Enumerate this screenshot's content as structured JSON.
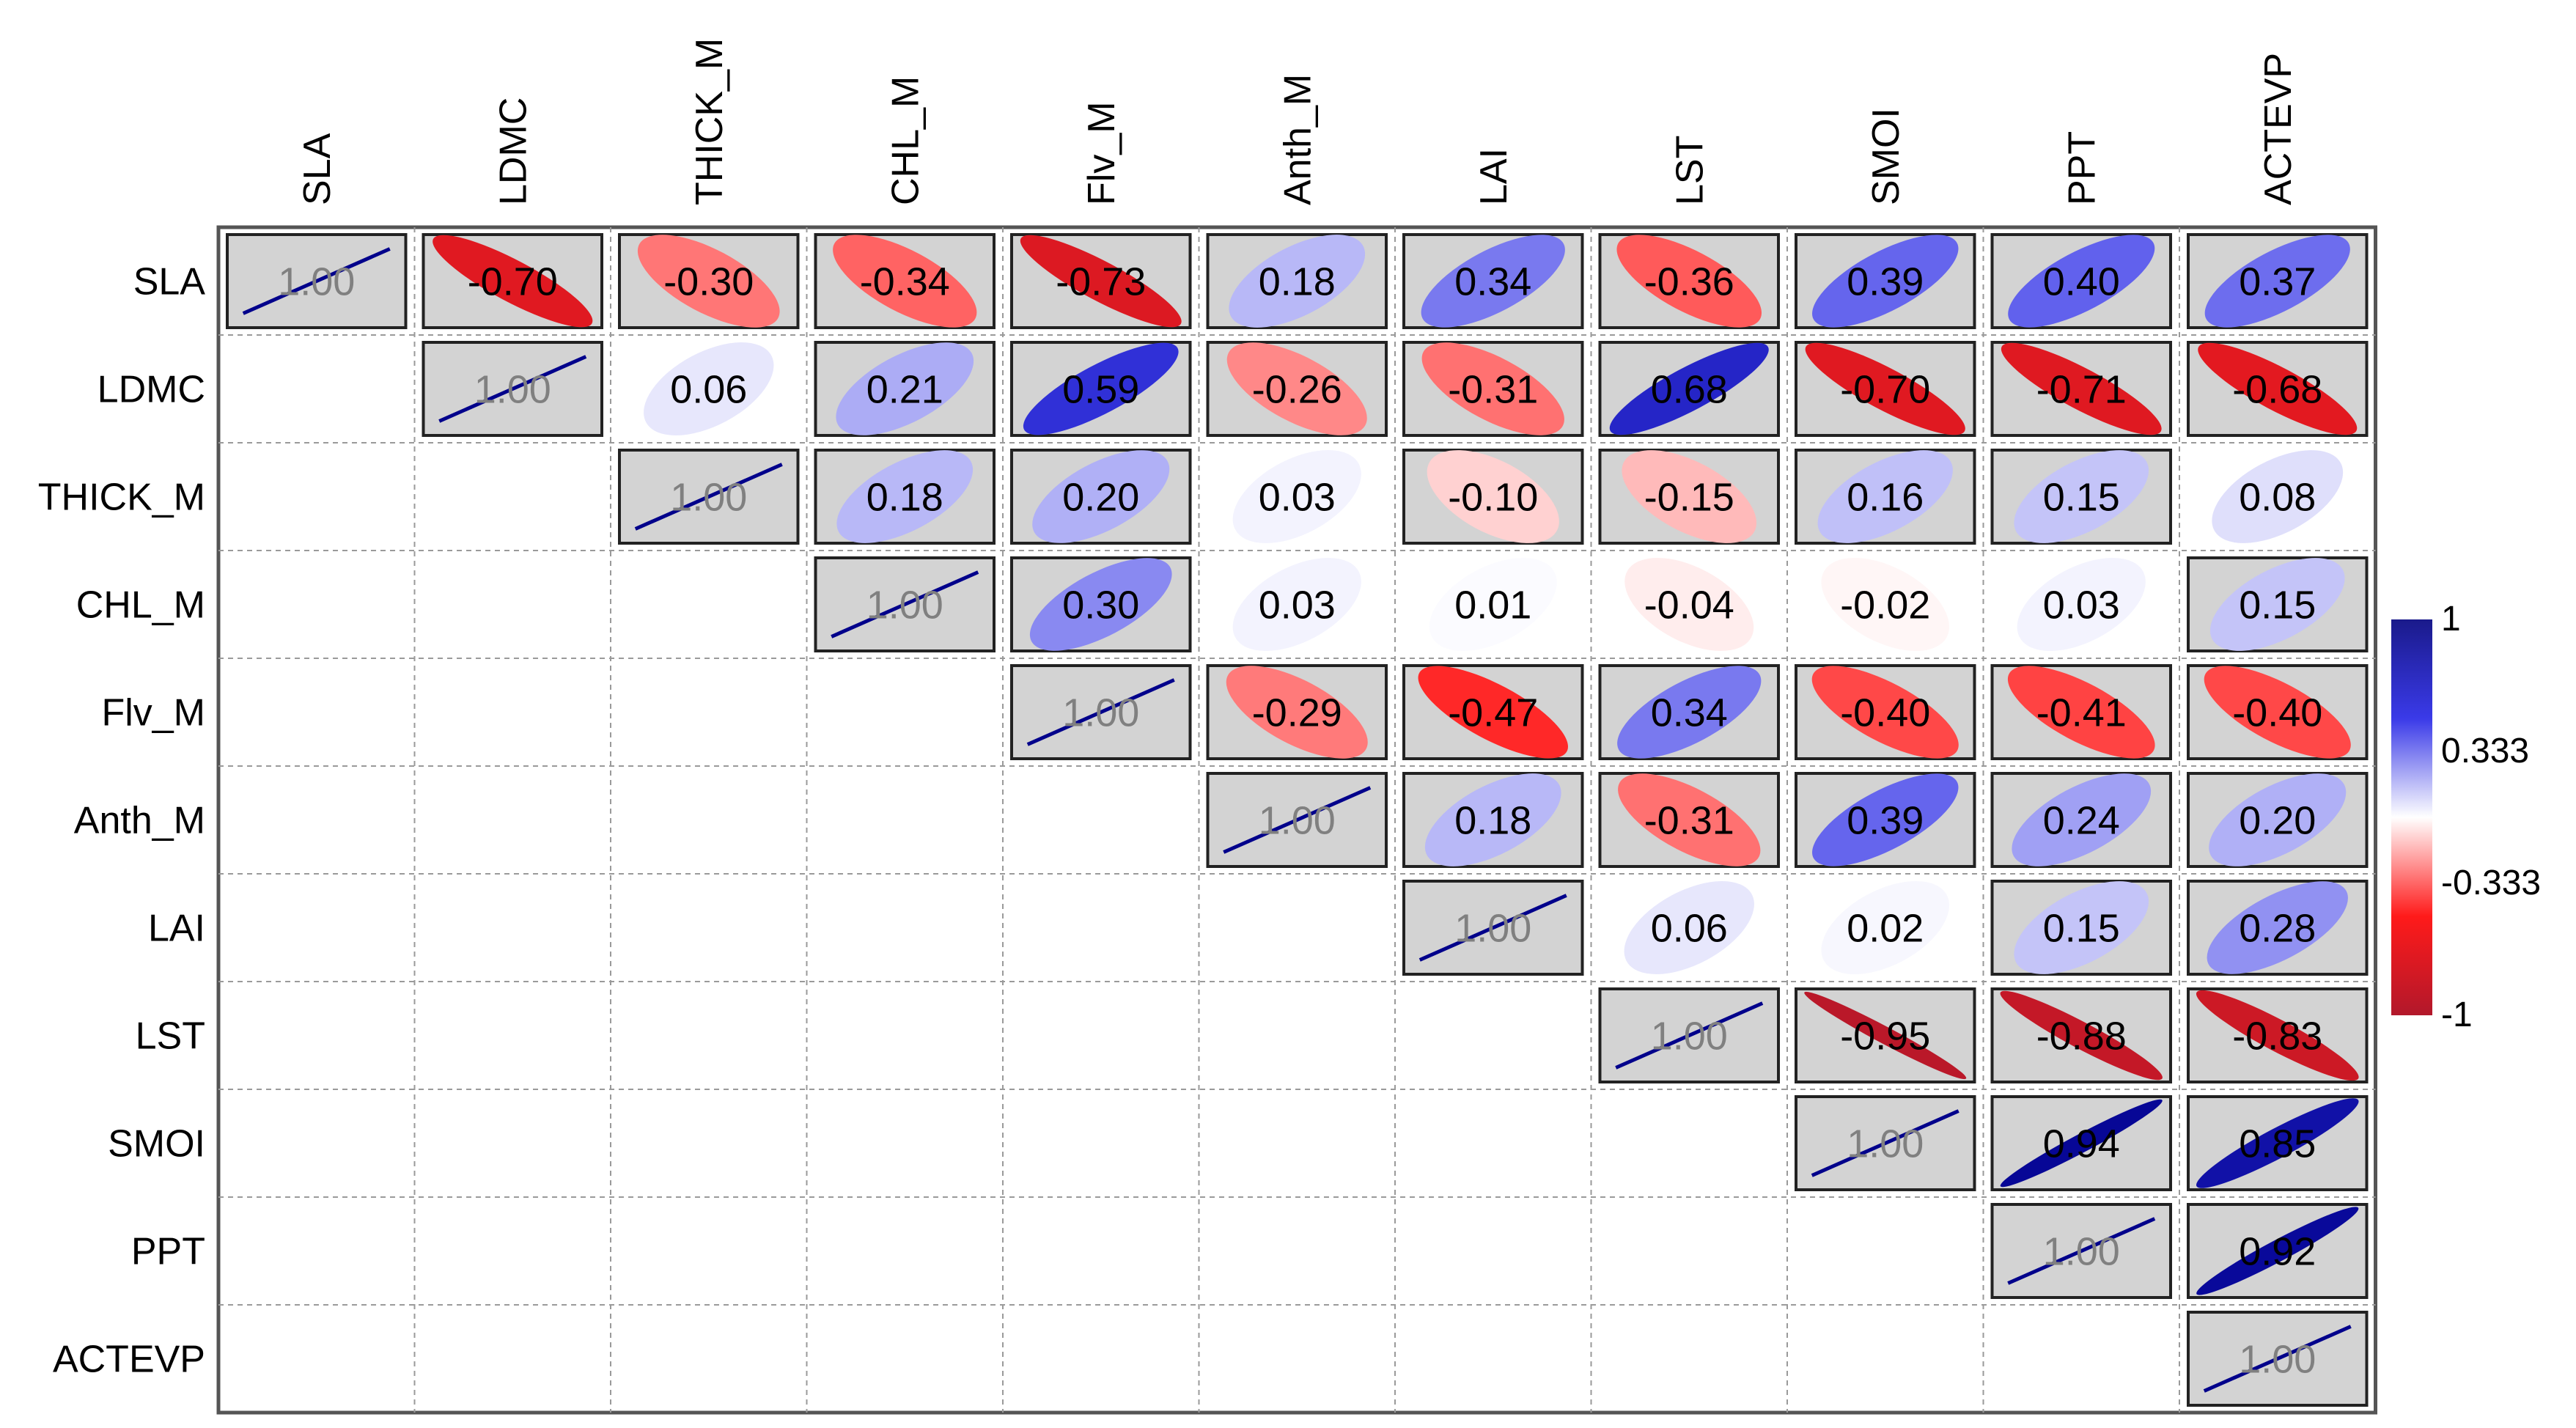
{
  "chart_data": {
    "type": "heatmap",
    "subtype": "correlation-matrix-upper-ellipse",
    "title": "",
    "variables": [
      "SLA",
      "LDMC",
      "THICK_M",
      "CHL_M",
      "Flv_M",
      "Anth_M",
      "LAI",
      "LST",
      "SMOI",
      "PPT",
      "ACTEVP"
    ],
    "matrix": [
      [
        1.0,
        -0.7,
        -0.3,
        -0.34,
        -0.73,
        0.18,
        0.34,
        -0.36,
        0.39,
        0.4,
        0.37
      ],
      [
        null,
        1.0,
        0.06,
        0.21,
        0.59,
        -0.26,
        -0.31,
        0.68,
        -0.7,
        -0.71,
        -0.68
      ],
      [
        null,
        null,
        1.0,
        0.18,
        0.2,
        0.03,
        -0.1,
        -0.15,
        0.16,
        0.15,
        0.08
      ],
      [
        null,
        null,
        null,
        1.0,
        0.3,
        0.03,
        0.01,
        -0.04,
        -0.02,
        0.03,
        0.15
      ],
      [
        null,
        null,
        null,
        null,
        1.0,
        -0.29,
        -0.47,
        0.34,
        -0.4,
        -0.41,
        -0.4
      ],
      [
        null,
        null,
        null,
        null,
        null,
        1.0,
        0.18,
        -0.31,
        0.39,
        0.24,
        0.2
      ],
      [
        null,
        null,
        null,
        null,
        null,
        null,
        1.0,
        0.06,
        0.02,
        0.15,
        0.28
      ],
      [
        null,
        null,
        null,
        null,
        null,
        null,
        null,
        1.0,
        -0.95,
        -0.88,
        -0.83
      ],
      [
        null,
        null,
        null,
        null,
        null,
        null,
        null,
        null,
        1.0,
        0.94,
        0.85
      ],
      [
        null,
        null,
        null,
        null,
        null,
        null,
        null,
        null,
        null,
        1.0,
        0.92
      ],
      [
        null,
        null,
        null,
        null,
        null,
        null,
        null,
        null,
        null,
        null,
        1.0
      ]
    ],
    "boxed_cells": [
      [
        0,
        0
      ],
      [
        0,
        1
      ],
      [
        0,
        2
      ],
      [
        0,
        3
      ],
      [
        0,
        4
      ],
      [
        0,
        5
      ],
      [
        0,
        6
      ],
      [
        0,
        7
      ],
      [
        0,
        8
      ],
      [
        0,
        9
      ],
      [
        0,
        10
      ],
      [
        1,
        1
      ],
      [
        1,
        3
      ],
      [
        1,
        4
      ],
      [
        1,
        5
      ],
      [
        1,
        6
      ],
      [
        1,
        7
      ],
      [
        1,
        8
      ],
      [
        1,
        9
      ],
      [
        1,
        10
      ],
      [
        2,
        2
      ],
      [
        2,
        3
      ],
      [
        2,
        4
      ],
      [
        2,
        6
      ],
      [
        2,
        7
      ],
      [
        2,
        8
      ],
      [
        2,
        9
      ],
      [
        3,
        3
      ],
      [
        3,
        4
      ],
      [
        3,
        10
      ],
      [
        4,
        4
      ],
      [
        4,
        5
      ],
      [
        4,
        6
      ],
      [
        4,
        7
      ],
      [
        4,
        8
      ],
      [
        4,
        9
      ],
      [
        4,
        10
      ],
      [
        5,
        5
      ],
      [
        5,
        6
      ],
      [
        5,
        7
      ],
      [
        5,
        8
      ],
      [
        5,
        9
      ],
      [
        5,
        10
      ],
      [
        6,
        6
      ],
      [
        6,
        9
      ],
      [
        6,
        10
      ],
      [
        7,
        7
      ],
      [
        7,
        8
      ],
      [
        7,
        9
      ],
      [
        7,
        10
      ],
      [
        8,
        8
      ],
      [
        8,
        9
      ],
      [
        8,
        10
      ],
      [
        9,
        9
      ],
      [
        9,
        10
      ],
      [
        10,
        10
      ]
    ],
    "color_scale": {
      "min": -1,
      "max": 1,
      "stops": [
        {
          "value": -1,
          "color": "#b2182b"
        },
        {
          "value": -0.5,
          "color": "#ff1a1a"
        },
        {
          "value": 0,
          "color": "#ffffff"
        },
        {
          "value": 0.5,
          "color": "#3a3ae8"
        },
        {
          "value": 1,
          "color": "#00008b"
        }
      ],
      "legend_ticks": [
        "1",
        "0.333",
        "-0.333",
        "-1"
      ]
    },
    "box_fill": "#d3d3d3",
    "diagonal_line_color": "#00008b",
    "diagonal_text_color": "#808080"
  }
}
